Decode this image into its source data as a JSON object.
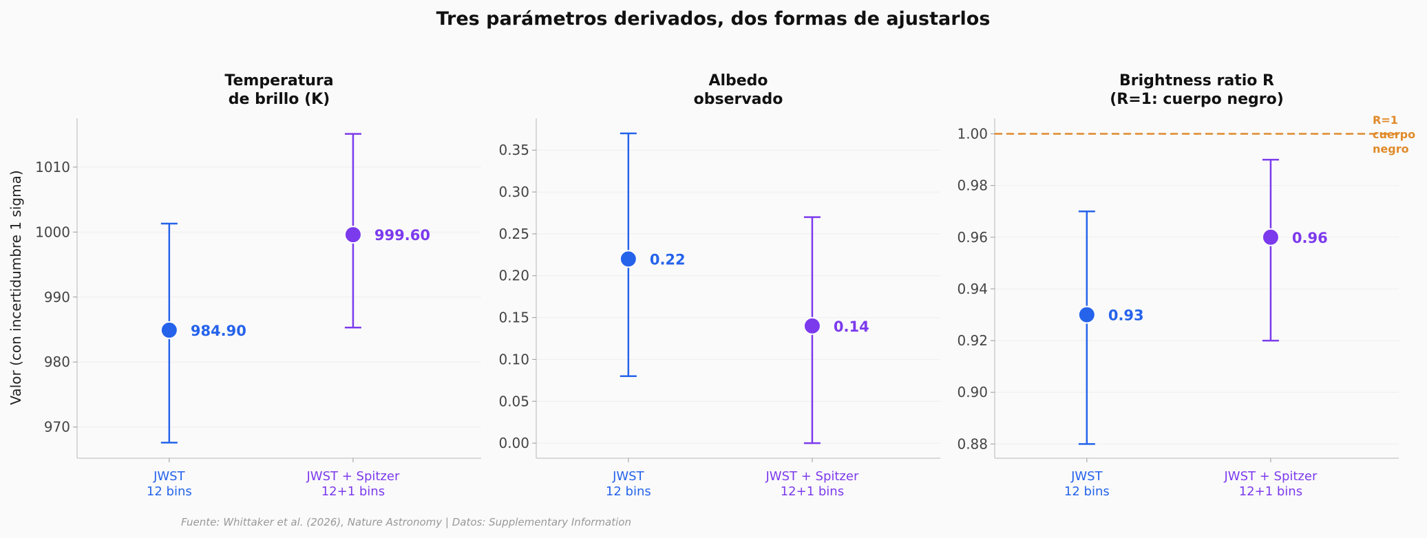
{
  "figure": {
    "title": "Tres parámetros derivados, dos formas de ajustarlos",
    "ylabel": "Valor (con incertidumbre 1 sigma)",
    "source": "Fuente: Whittaker et al. (2026), Nature Astronomy | Datos: Supplementary Information"
  },
  "colors": {
    "jwst": "#2563eb",
    "spitzer": "#7c3aed",
    "reference": "#e08a2a",
    "axis": "#cccccc",
    "grid": "#eeeeee"
  },
  "chart_data": [
    {
      "type": "scatter",
      "title_lines": [
        "Temperatura",
        "de brillo (K)"
      ],
      "categories": [
        {
          "lines": [
            "JWST",
            "12 bins"
          ]
        },
        {
          "lines": [
            "JWST + Spitzer",
            "12+1 bins"
          ]
        }
      ],
      "points": [
        {
          "value": 984.9,
          "lower": 967.6,
          "upper": 1001.3,
          "label": "984.90"
        },
        {
          "value": 999.6,
          "lower": 985.3,
          "upper": 1015.1,
          "label": "999.60"
        }
      ],
      "ylim": [
        965.2,
        1017.5
      ],
      "yticks": [
        970,
        980,
        990,
        1000,
        1010
      ],
      "ytick_labels": [
        "970",
        "980",
        "990",
        "1000",
        "1010"
      ],
      "grid": true
    },
    {
      "type": "scatter",
      "title_lines": [
        "Albedo",
        "observado"
      ],
      "categories": [
        {
          "lines": [
            "JWST",
            "12 bins"
          ]
        },
        {
          "lines": [
            "JWST + Spitzer",
            "12+1 bins"
          ]
        }
      ],
      "points": [
        {
          "value": 0.22,
          "lower": 0.08,
          "upper": 0.37,
          "label": "0.22"
        },
        {
          "value": 0.14,
          "lower": 0.0,
          "upper": 0.27,
          "label": "0.14"
        }
      ],
      "ylim": [
        -0.018,
        0.388
      ],
      "yticks": [
        0.0,
        0.05,
        0.1,
        0.15,
        0.2,
        0.25,
        0.3,
        0.35
      ],
      "ytick_labels": [
        "0.00",
        "0.05",
        "0.10",
        "0.15",
        "0.20",
        "0.25",
        "0.30",
        "0.35"
      ],
      "grid": true
    },
    {
      "type": "scatter",
      "title_lines": [
        "Brightness ratio R",
        "(R=1: cuerpo negro)"
      ],
      "categories": [
        {
          "lines": [
            "JWST",
            "12 bins"
          ]
        },
        {
          "lines": [
            "JWST + Spitzer",
            "12+1 bins"
          ]
        }
      ],
      "points": [
        {
          "value": 0.93,
          "lower": 0.88,
          "upper": 0.97,
          "label": "0.93"
        },
        {
          "value": 0.96,
          "lower": 0.92,
          "upper": 0.99,
          "label": "0.96"
        }
      ],
      "ylim": [
        0.8745,
        1.006
      ],
      "yticks": [
        0.88,
        0.9,
        0.92,
        0.94,
        0.96,
        0.98,
        1.0
      ],
      "ytick_labels": [
        "0.88",
        "0.90",
        "0.92",
        "0.94",
        "0.96",
        "0.98",
        "1.00"
      ],
      "reference_line": {
        "value": 1.0,
        "note_lines": [
          "R=1",
          "cuerpo",
          "negro"
        ]
      },
      "grid": true
    }
  ]
}
